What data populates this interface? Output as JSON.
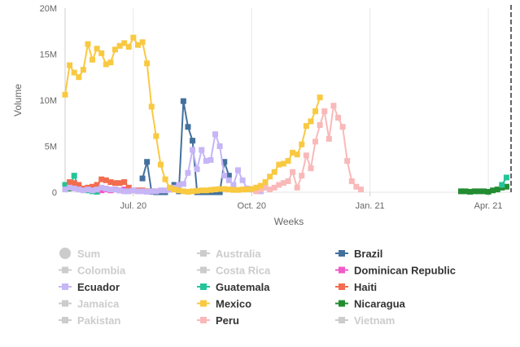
{
  "chart_data": {
    "type": "line",
    "title": "",
    "xlabel": "Weeks",
    "ylabel": "Volume",
    "ylim": [
      0,
      20
    ],
    "y_ticks": [
      0,
      5,
      10,
      15,
      20
    ],
    "y_tick_labels": [
      "0",
      "5M",
      "10M",
      "15M",
      "20M"
    ],
    "y_unit": "millions",
    "x_ticks": [
      {
        "week": 15,
        "label": "Jul. 20"
      },
      {
        "week": 41,
        "label": "Oct. 20"
      },
      {
        "week": 67,
        "label": "Jan. 21"
      },
      {
        "week": 93,
        "label": "Apr. 21"
      }
    ],
    "x_range": [
      0,
      98
    ],
    "marker_line": {
      "week": 98,
      "style": "dashed"
    },
    "gridlines": "vertical-only",
    "series": [
      {
        "name": "Mexico",
        "color": "#f9c941",
        "marker": "square",
        "visible": true,
        "start_week": 0,
        "values": [
          10.6,
          13.8,
          13.0,
          12.5,
          13.3,
          16.1,
          14.4,
          15.6,
          15.1,
          13.9,
          14.1,
          15.5,
          15.9,
          16.2,
          15.8,
          16.8,
          16.0,
          16.3,
          14.0,
          9.3,
          6.1,
          3.0,
          1.4,
          0.5,
          0.3,
          0.2,
          0.1,
          0.05,
          0.1,
          0.15,
          0.2,
          0.2,
          0.25,
          0.3,
          0.35,
          0.35,
          0.3,
          0.25,
          0.25,
          0.3,
          0.3,
          0.35,
          0.5,
          0.7,
          1.1,
          1.7,
          2.2,
          3.0,
          3.1,
          3.4,
          4.3,
          4.1,
          5.2,
          7.2,
          7.7,
          8.8,
          10.3
        ]
      },
      {
        "name": "Peru",
        "color": "#f9b9b9",
        "marker": "square",
        "visible": true,
        "start_week": 42,
        "values": [
          0.1,
          0.3,
          0.5,
          0.3,
          0.5,
          0.8,
          1.0,
          1.2,
          2.2,
          0.5,
          1.8,
          4.0,
          2.6,
          5.5,
          7.3,
          8.8,
          5.8,
          9.4,
          8.1,
          7.1,
          3.4,
          1.2,
          0.6,
          0.3
        ]
      },
      {
        "name": "Ecuador",
        "color": "#c6b6f6",
        "marker": "square",
        "visible": true,
        "start_week": 0,
        "values": [
          0.3,
          0.5,
          0.4,
          0.3,
          0.2,
          0.3,
          0.2,
          0.3,
          0.5,
          0.4,
          0.3,
          0.3,
          0.2,
          0.1,
          0.1,
          0.2,
          0.1,
          0.1,
          0.05,
          0.1,
          0.1,
          0.2,
          0.2,
          0.3,
          0.5,
          0.8,
          0.9,
          2.1,
          4.6,
          2.5,
          4.6,
          3.4,
          3.5,
          6.3,
          5.0,
          1.8,
          1.3,
          0.8,
          2.4,
          1.3,
          0.4,
          0.3,
          0.2,
          0.1
        ]
      },
      {
        "name": "Brazil",
        "color": "#44709d",
        "marker": "square",
        "visible": true,
        "start_week": 17,
        "values": [
          1.5,
          3.3,
          0.05,
          0,
          0,
          0,
          0.3,
          0.8,
          0.1,
          9.9,
          7.1,
          5.6,
          0,
          0,
          0,
          0,
          0,
          0,
          3.3,
          1.8
        ]
      },
      {
        "name": "Haiti",
        "color": "#f26c4f",
        "marker": "square",
        "visible": true,
        "start_week": 1,
        "values": [
          1.1,
          1.0,
          0.8,
          0.4,
          0.5,
          0.6,
          0.8,
          1.4,
          1.3,
          1.1,
          1.0,
          1.0,
          1.1,
          0.5,
          0.2,
          0.2,
          0.2,
          0.1,
          0.1,
          0.1
        ]
      },
      {
        "name": "Dominican Republic",
        "color": "#f15ac9",
        "marker": "square",
        "visible": true,
        "start_week": 7,
        "values": [
          0.3,
          0.2,
          0.3,
          0.2,
          0.3,
          0.2,
          0.3
        ]
      },
      {
        "name": "Guatemala",
        "color": "#24c499",
        "marker": "square",
        "visible": true,
        "start_week": 0,
        "values": [
          0.8,
          0.6,
          1.8,
          0.5,
          0.3,
          0.2,
          0.1,
          0.05
        ]
      },
      {
        "name": "Nicaragua",
        "color": "#238c32",
        "marker": "square",
        "visible": true,
        "start_week": 0,
        "values": [
          0.5,
          0.4,
          0.6,
          0.5,
          0.3,
          0.4,
          0.2,
          0.3
        ]
      },
      {
        "name": "Guatemala (Apr. 21)",
        "legend_ref": "Guatemala",
        "color": "#24c499",
        "marker": "square",
        "visible": true,
        "start_week": 96,
        "values": [
          0.8,
          1.6
        ]
      },
      {
        "name": "Nicaragua (Apr. 21)",
        "legend_ref": "Nicaragua",
        "color": "#238c32",
        "marker": "square",
        "visible": true,
        "start_week": 87,
        "values": [
          0.1,
          0.1,
          0.05,
          0.1,
          0.1,
          0.1,
          0.05,
          0.2,
          0.3,
          0.5,
          0.6
        ]
      }
    ]
  },
  "legend": {
    "placement": "bottom",
    "items": [
      {
        "label": "Sum",
        "color": "#cccccc",
        "marker": "circle",
        "active": false
      },
      {
        "label": "Australia",
        "color": "#cccccc",
        "marker": "square",
        "active": false
      },
      {
        "label": "Brazil",
        "color": "#44709d",
        "marker": "square",
        "active": true
      },
      {
        "label": "Colombia",
        "color": "#cccccc",
        "marker": "square",
        "active": false
      },
      {
        "label": "Costa Rica",
        "color": "#cccccc",
        "marker": "square",
        "active": false
      },
      {
        "label": "Dominican Republic",
        "color": "#f15ac9",
        "marker": "square",
        "active": true
      },
      {
        "label": "Ecuador",
        "color": "#c6b6f6",
        "marker": "square",
        "active": true
      },
      {
        "label": "Guatemala",
        "color": "#24c499",
        "marker": "square",
        "active": true
      },
      {
        "label": "Haiti",
        "color": "#f26c4f",
        "marker": "square",
        "active": true
      },
      {
        "label": "Jamaica",
        "color": "#cccccc",
        "marker": "square",
        "active": false
      },
      {
        "label": "Mexico",
        "color": "#f9c941",
        "marker": "square",
        "active": true
      },
      {
        "label": "Nicaragua",
        "color": "#238c32",
        "marker": "square",
        "active": true
      },
      {
        "label": "Pakistan",
        "color": "#cccccc",
        "marker": "square",
        "active": false
      },
      {
        "label": "Peru",
        "color": "#f9b9b9",
        "marker": "square",
        "active": true
      },
      {
        "label": "Vietnam",
        "color": "#cccccc",
        "marker": "square",
        "active": false
      }
    ]
  },
  "colors": {
    "inactive_text": "#cccccc",
    "active_text": "#333333",
    "grid": "#e6e6e6",
    "axis_text": "#666666"
  }
}
